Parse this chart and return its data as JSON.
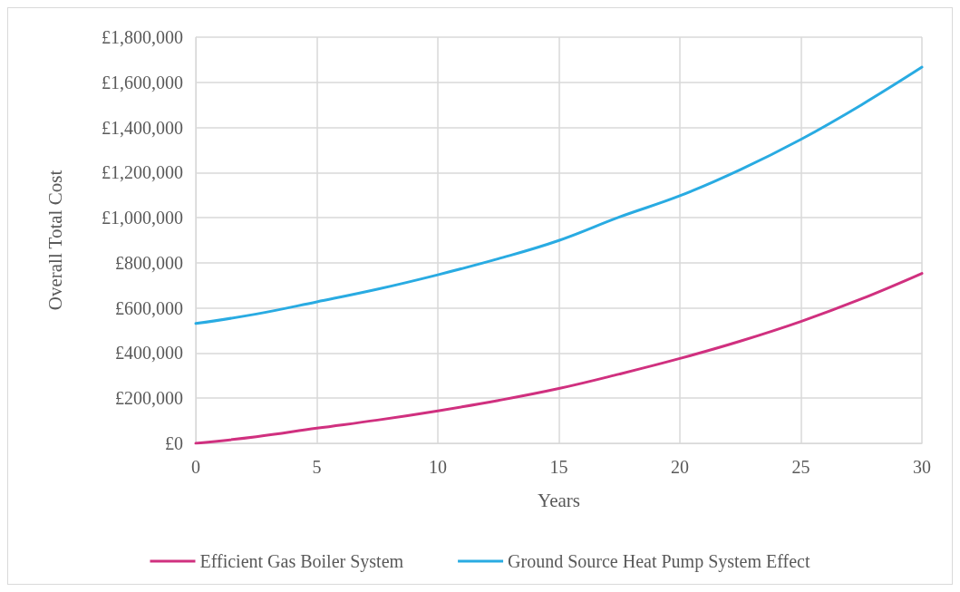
{
  "chart_data": {
    "type": "line",
    "xlabel": "Years",
    "ylabel": "Overall Total Cost",
    "x": [
      0,
      2.5,
      5,
      7.5,
      10,
      12.5,
      15,
      17.5,
      20,
      22.5,
      25,
      27.5,
      30
    ],
    "series": [
      {
        "name": "Efficient Gas Boiler System",
        "color": "#d0307f",
        "values": [
          0,
          29000,
          67000,
          103000,
          144000,
          190000,
          243000,
          307000,
          376000,
          453000,
          540000,
          640000,
          753000
        ]
      },
      {
        "name": "Ground Source Heat Pump System Effect",
        "color": "#29abe2",
        "values": [
          531000,
          573000,
          627000,
          683000,
          747000,
          818000,
          899000,
          1003000,
          1097000,
          1213000,
          1347000,
          1500000,
          1667000
        ]
      }
    ],
    "xlim": [
      0,
      30
    ],
    "xticks": [
      0,
      5,
      10,
      15,
      20,
      25,
      30
    ],
    "ylim": [
      0,
      1800000
    ],
    "yticks": [
      {
        "value": 0,
        "label": "£0"
      },
      {
        "value": 200000,
        "label": "£200,000"
      },
      {
        "value": 400000,
        "label": "£400,000"
      },
      {
        "value": 600000,
        "label": "£600,000"
      },
      {
        "value": 800000,
        "label": "£800,000"
      },
      {
        "value": 1000000,
        "label": "£1,000,000"
      },
      {
        "value": 1200000,
        "label": "£1,200,000"
      },
      {
        "value": 1400000,
        "label": "£1,400,000"
      },
      {
        "value": 1600000,
        "label": "£1,600,000"
      },
      {
        "value": 1800000,
        "label": "£1,800,000"
      }
    ],
    "grid": true,
    "legend": "bottom",
    "marker": "none",
    "line_style": "solid"
  }
}
